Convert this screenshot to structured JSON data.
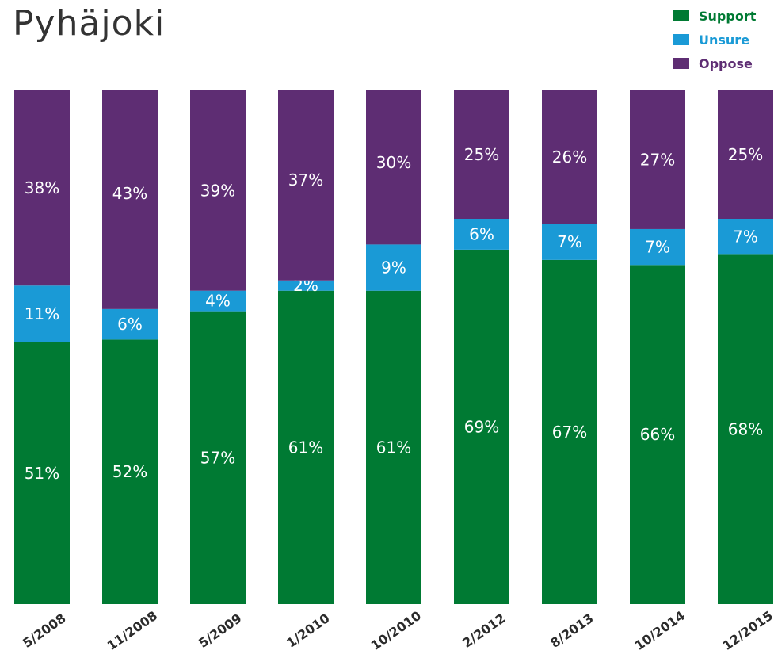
{
  "title": "Pyhäjoki",
  "legend": [
    {
      "label": "Support",
      "color": "#007a33"
    },
    {
      "label": "Unsure",
      "color": "#1a9ad6"
    },
    {
      "label": "Oppose",
      "color": "#5e2d73"
    }
  ],
  "chart_data": {
    "type": "bar",
    "stacked": true,
    "title": "Pyhäjoki",
    "categories": [
      "5/2008",
      "11/2008",
      "5/2009",
      "1/2010",
      "10/2010",
      "2/2012",
      "8/2013",
      "10/2014",
      "12/2015"
    ],
    "series": [
      {
        "name": "Support",
        "color": "#007a33",
        "values": [
          51,
          52,
          57,
          61,
          61,
          69,
          67,
          66,
          68
        ],
        "labels": [
          "51%",
          "52%",
          "57%",
          "61%",
          "61%",
          "69%",
          "67%",
          "66%",
          "68%"
        ]
      },
      {
        "name": "Unsure",
        "color": "#1a9ad6",
        "values": [
          11,
          6,
          4,
          2,
          9,
          6,
          7,
          7,
          7
        ],
        "labels": [
          "11%",
          "6%",
          "4%",
          "2%",
          "9%",
          "6%",
          "7%",
          "7%",
          "7%"
        ]
      },
      {
        "name": "Oppose",
        "color": "#5e2d73",
        "values": [
          38,
          43,
          39,
          37,
          30,
          25,
          26,
          27,
          25
        ],
        "labels": [
          "38%",
          "43%",
          "39%",
          "37%",
          "30%",
          "25%",
          "26%",
          "27%",
          "25%"
        ]
      }
    ],
    "ylim": [
      0,
      100
    ],
    "legend_position": "top-right",
    "grid": false
  }
}
